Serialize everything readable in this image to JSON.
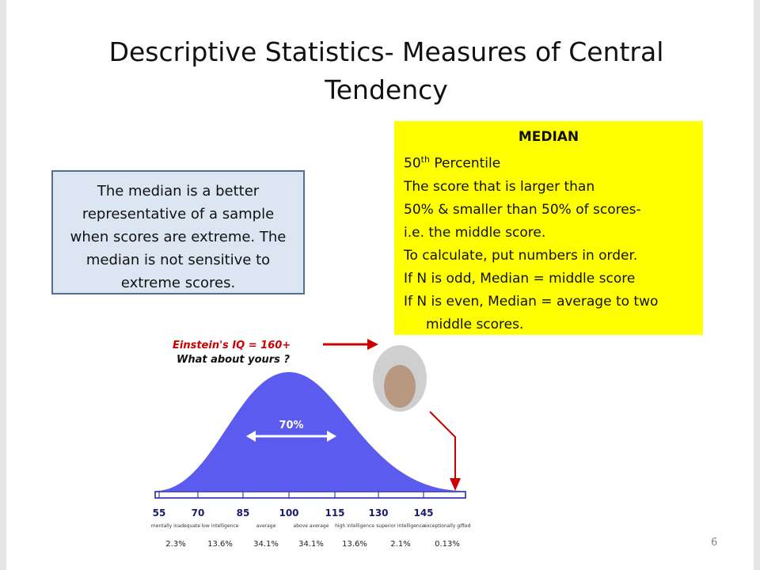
{
  "title": "Descriptive Statistics- Measures of Central Tendency",
  "left_box": {
    "text": "The median is a better representative of a sample when scores are extreme.  The median is not sensitive to extreme scores."
  },
  "median_box": {
    "heading": "MEDIAN",
    "percentile": {
      "number": "50",
      "suffix": "th",
      "text": "Percentile"
    },
    "lines": [
      "The score that is larger than",
      "50% & smaller than 50% of scores-",
      "i.e. the middle  score.",
      "To calculate, put numbers in order.",
      "If N is odd, Median = middle score",
      "If N is even, Median = average to two",
      "middle scores."
    ]
  },
  "figure": {
    "annotation": "Einstein's IQ = 160+",
    "question": "What about yours ?",
    "range_label": "70%",
    "ticks": [
      "55",
      "70",
      "85",
      "100",
      "115",
      "130",
      "145"
    ],
    "bands": [
      {
        "label": "mentally inadequate",
        "percent": "2.3%"
      },
      {
        "label": "low intelligence",
        "percent": "13.6%"
      },
      {
        "label": "average",
        "percent": "34.1%"
      },
      {
        "label": "above average",
        "percent": "34.1%"
      },
      {
        "label": "high intelligence",
        "percent": "13.6%"
      },
      {
        "label": "superior intelligence",
        "percent": "2.1%"
      },
      {
        "label": "exceptionally gifted",
        "percent": "0.13%"
      }
    ]
  },
  "page_number": "6"
}
